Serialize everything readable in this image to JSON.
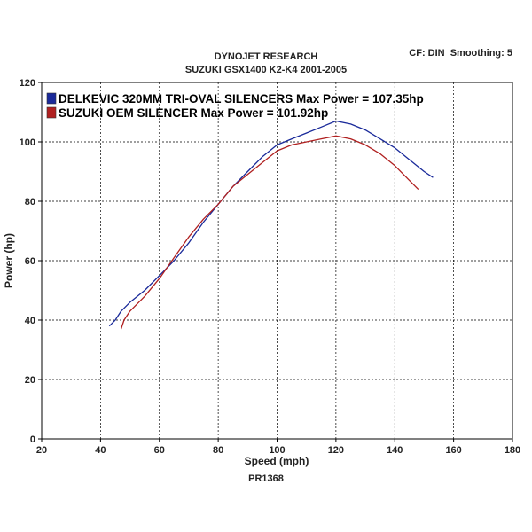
{
  "header": {
    "title": "DYNOJET RESEARCH",
    "subtitle": "SUZUKI GSX1400 K2-K4 2001-2005",
    "settings": "CF: DIN  Smoothing: 5"
  },
  "footer": {
    "run_id": "PR1368"
  },
  "chart_data": {
    "type": "line",
    "title": "DYNOJET RESEARCH",
    "subtitle": "SUZUKI GSX1400 K2-K4 2001-2005",
    "xlabel": "Speed (mph)",
    "ylabel": "Power (hp)",
    "xlim": [
      20,
      180
    ],
    "ylim": [
      0,
      120
    ],
    "xticks": [
      20,
      40,
      60,
      80,
      100,
      120,
      140,
      160,
      180
    ],
    "yticks": [
      0,
      20,
      40,
      60,
      80,
      100,
      120
    ],
    "grid": true,
    "legend_position": "top-left",
    "series": [
      {
        "name": "DELKEVIC 320MM TRI-OVAL SILENCERS  Max Power = 107.35hp",
        "color": "#1a2a9a",
        "x": [
          43,
          45,
          47,
          50,
          55,
          60,
          65,
          70,
          75,
          80,
          85,
          90,
          95,
          100,
          105,
          110,
          115,
          120,
          125,
          130,
          135,
          140,
          145,
          150,
          153
        ],
        "y": [
          38,
          40,
          43,
          46,
          50,
          55,
          60,
          66,
          73,
          79,
          85,
          90,
          95,
          99,
          101,
          103,
          105,
          107,
          106,
          104,
          101,
          98,
          94,
          90,
          88
        ]
      },
      {
        "name": "SUZUKI OEM SILENCER Max Power = 101.92hp",
        "color": "#b02020",
        "x": [
          47,
          48,
          50,
          55,
          60,
          65,
          70,
          75,
          80,
          85,
          90,
          95,
          100,
          105,
          110,
          115,
          120,
          125,
          130,
          135,
          140,
          145,
          148
        ],
        "y": [
          37,
          40,
          43,
          48,
          54,
          61,
          68,
          74,
          79,
          85,
          89,
          93,
          97,
          99,
          100,
          101,
          102,
          101,
          99,
          96,
          92,
          87,
          84
        ]
      }
    ]
  }
}
